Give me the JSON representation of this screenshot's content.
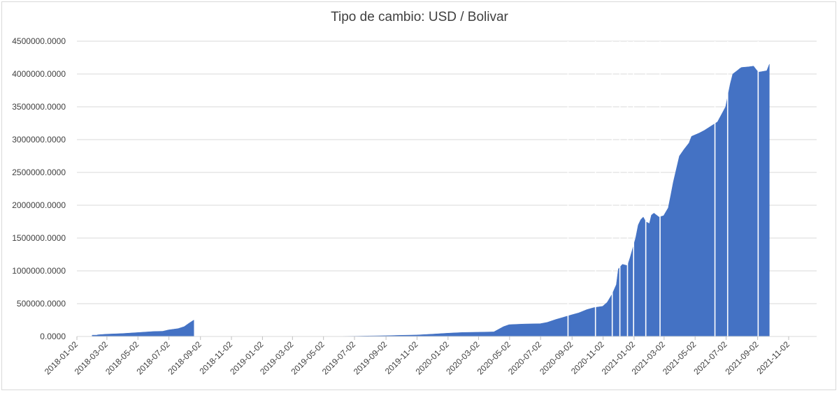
{
  "chart_data": {
    "type": "area",
    "title": "Tipo de cambio: USD / Bolivar",
    "xlabel": "",
    "ylabel": "",
    "ylim": [
      0,
      4500000
    ],
    "yticks": [
      "0.0000",
      "500000.0000",
      "1000000.0000",
      "1500000.0000",
      "2000000.0000",
      "2500000.0000",
      "3000000.0000",
      "3500000.0000",
      "4000000.0000",
      "4500000.0000"
    ],
    "xticks": [
      "2018-01-02",
      "2018-03-02",
      "2018-05-02",
      "2018-07-02",
      "2018-09-02",
      "2018-11-02",
      "2019-01-02",
      "2019-03-02",
      "2019-05-02",
      "2019-07-02",
      "2019-09-02",
      "2019-11-02",
      "2020-01-02",
      "2020-03-02",
      "2020-05-02",
      "2020-07-02",
      "2020-09-02",
      "2020-11-02",
      "2021-01-02",
      "2021-03-02",
      "2021-05-02",
      "2021-07-02",
      "2021-09-02",
      "2021-11-02"
    ],
    "grid": true,
    "color": "#4472c4",
    "series": [
      {
        "x": [
          "2018-02-01",
          "2018-02-10",
          "2018-02-12",
          "2018-03-01",
          "2018-04-01",
          "2018-05-01",
          "2018-06-01",
          "2018-06-20",
          "2018-07-01",
          "2018-07-20",
          "2018-08-01",
          "2018-08-10",
          "2018-08-18",
          "2018-08-20",
          "2019-06-01",
          "2019-07-01",
          "2019-08-01",
          "2019-09-01",
          "2019-10-01",
          "2019-11-01",
          "2019-12-01",
          "2020-01-01",
          "2020-02-01",
          "2020-03-01",
          "2020-04-01",
          "2020-04-20",
          "2020-05-01",
          "2020-05-15",
          "2020-06-01",
          "2020-07-01",
          "2020-07-15",
          "2020-08-01",
          "2020-08-15",
          "2020-09-01",
          "2020-09-15",
          "2020-10-01",
          "2020-10-15",
          "2020-11-01",
          "2020-11-10",
          "2020-11-20",
          "2020-11-28",
          "2020-12-02",
          "2020-12-10",
          "2020-12-20",
          "2020-12-25",
          "2021-01-05",
          "2021-01-10",
          "2021-01-15",
          "2021-01-20",
          "2021-01-25",
          "2021-02-01",
          "2021-02-05",
          "2021-02-10",
          "2021-02-20",
          "2021-03-01",
          "2021-03-10",
          "2021-03-15",
          "2021-03-20",
          "2021-04-01",
          "2021-04-10",
          "2021-04-20",
          "2021-04-25",
          "2021-05-01",
          "2021-05-10",
          "2021-05-20",
          "2021-06-01",
          "2021-06-15",
          "2021-07-01",
          "2021-07-10",
          "2021-07-15",
          "2021-07-25",
          "2021-07-28",
          "2021-08-01",
          "2021-08-15",
          "2021-08-25",
          "2021-09-01",
          "2021-09-05",
          "2021-09-20",
          "2021-09-25"
        ],
        "y": [
          20000,
          20000,
          25000,
          35000,
          45000,
          60000,
          75000,
          80000,
          100000,
          120000,
          150000,
          200000,
          240000,
          250000,
          2000,
          4000,
          8000,
          12000,
          18000,
          22000,
          35000,
          50000,
          62000,
          65000,
          70000,
          150000,
          180000,
          185000,
          190000,
          195000,
          215000,
          260000,
          290000,
          330000,
          360000,
          410000,
          440000,
          460000,
          520000,
          650000,
          790000,
          1030000,
          1100000,
          1080000,
          1200000,
          1500000,
          1700000,
          1780000,
          1820000,
          1750000,
          1720000,
          1850000,
          1880000,
          1820000,
          1840000,
          1960000,
          2150000,
          2350000,
          2750000,
          2850000,
          2950000,
          3050000,
          3070000,
          3100000,
          3140000,
          3200000,
          3270000,
          3500000,
          3850000,
          4000000,
          4060000,
          4080000,
          4100000,
          4110000,
          4120000,
          4050000,
          4030000,
          4050000,
          4150000
        ]
      }
    ]
  }
}
